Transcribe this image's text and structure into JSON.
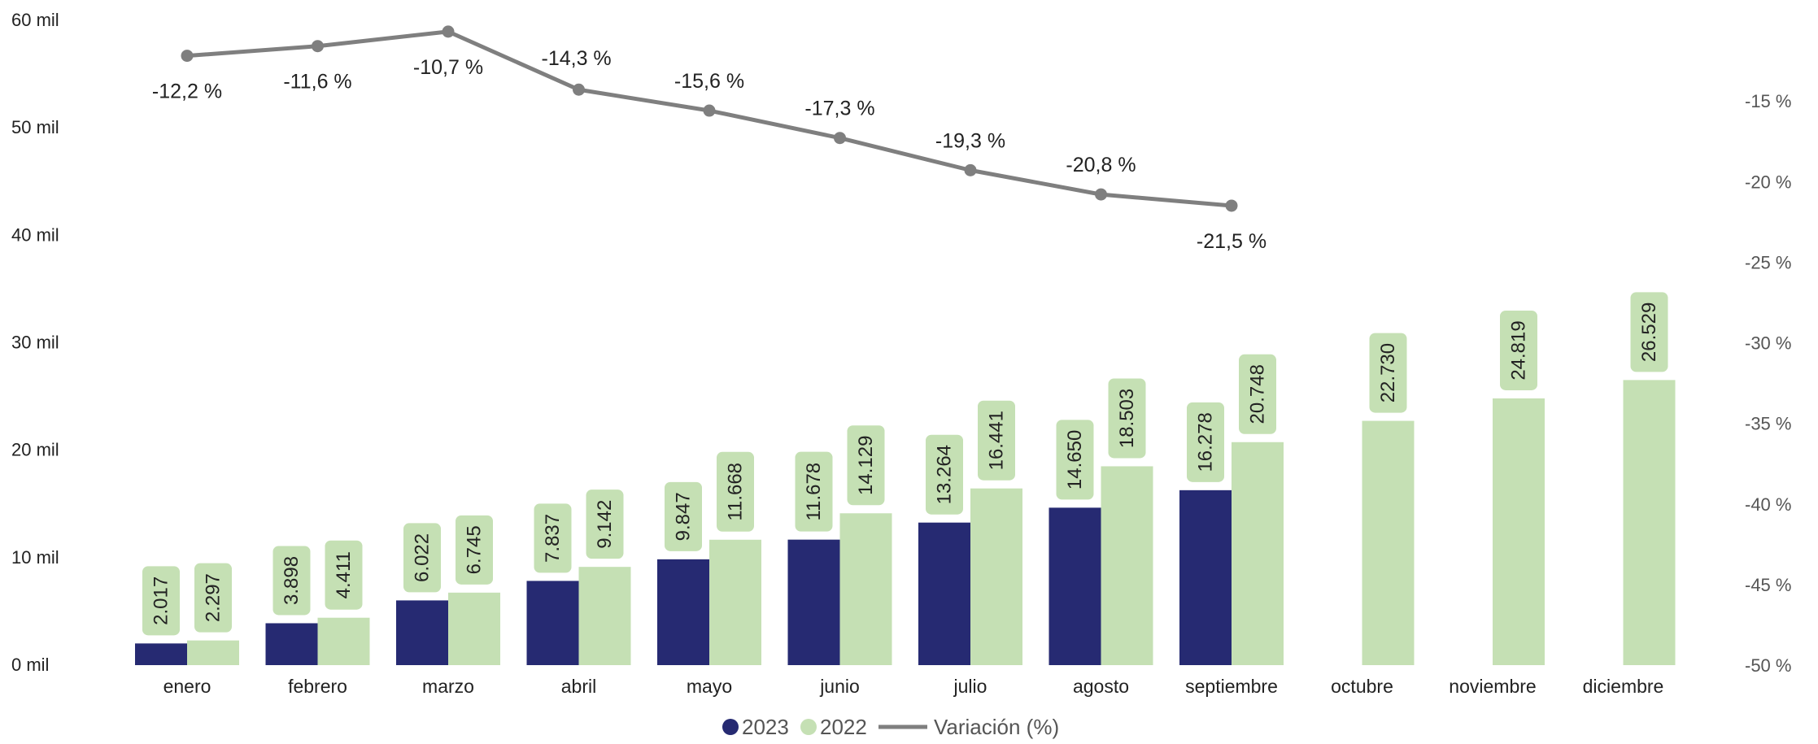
{
  "chart_data": {
    "type": "bar",
    "categories": [
      "enero",
      "febrero",
      "marzo",
      "abril",
      "mayo",
      "junio",
      "julio",
      "agosto",
      "septiembre",
      "octubre",
      "noviembre",
      "diciembre"
    ],
    "series": [
      {
        "name": "2023",
        "type": "bar",
        "axis": "left",
        "color": "#262a72",
        "values": [
          2017,
          3898,
          6022,
          7837,
          9847,
          11678,
          13264,
          14650,
          16278,
          null,
          null,
          null
        ],
        "labels": [
          "2.017",
          "3.898",
          "6.022",
          "7.837",
          "9.847",
          "11.678",
          "13.264",
          "14.650",
          "16.278",
          "",
          "",
          ""
        ]
      },
      {
        "name": "2022",
        "type": "bar",
        "axis": "left",
        "color": "#c5e0b4",
        "values": [
          2297,
          4411,
          6745,
          9142,
          11668,
          14129,
          16441,
          18503,
          20748,
          22730,
          24819,
          26529
        ],
        "labels": [
          "2.297",
          "4.411",
          "6.745",
          "9.142",
          "11.668",
          "14.129",
          "16.441",
          "18.503",
          "20.748",
          "22.730",
          "24.819",
          "26.529"
        ]
      },
      {
        "name": "Variación (%)",
        "type": "line",
        "axis": "right",
        "color": "#7f7f7f",
        "values": [
          -12.2,
          -11.6,
          -10.7,
          -14.3,
          -15.6,
          -17.3,
          -19.3,
          -20.8,
          -21.5,
          null,
          null,
          null
        ],
        "labels": [
          "-12,2 %",
          "-11,6 %",
          "-10,7 %",
          "-14,3 %",
          "-15,6 %",
          "-17,3 %",
          "-19,3 %",
          "-20,8 %",
          "-21,5 %",
          "",
          "",
          ""
        ]
      }
    ],
    "y_left": {
      "range": [
        0,
        60000
      ],
      "ticks": [
        0,
        10000,
        20000,
        30000,
        40000,
        50000,
        60000
      ],
      "tick_labels": [
        "0 mil",
        "10 mil",
        "20 mil",
        "30 mil",
        "40 mil",
        "50 mil",
        "60 mil"
      ]
    },
    "y_right": {
      "range": [
        -50,
        -10
      ],
      "ticks": [
        -50,
        -45,
        -40,
        -35,
        -30,
        -25,
        -20,
        -15
      ],
      "tick_labels": [
        "-50 %",
        "-45 %",
        "-40 %",
        "-35 %",
        "-30 %",
        "-25 %",
        "-20 %",
        "-15 %"
      ]
    },
    "legend": {
      "position": "bottom",
      "items": [
        "2023",
        "2022",
        "Variación (%)"
      ]
    },
    "grid": false,
    "title": "",
    "xlabel": "",
    "ylabel": ""
  }
}
